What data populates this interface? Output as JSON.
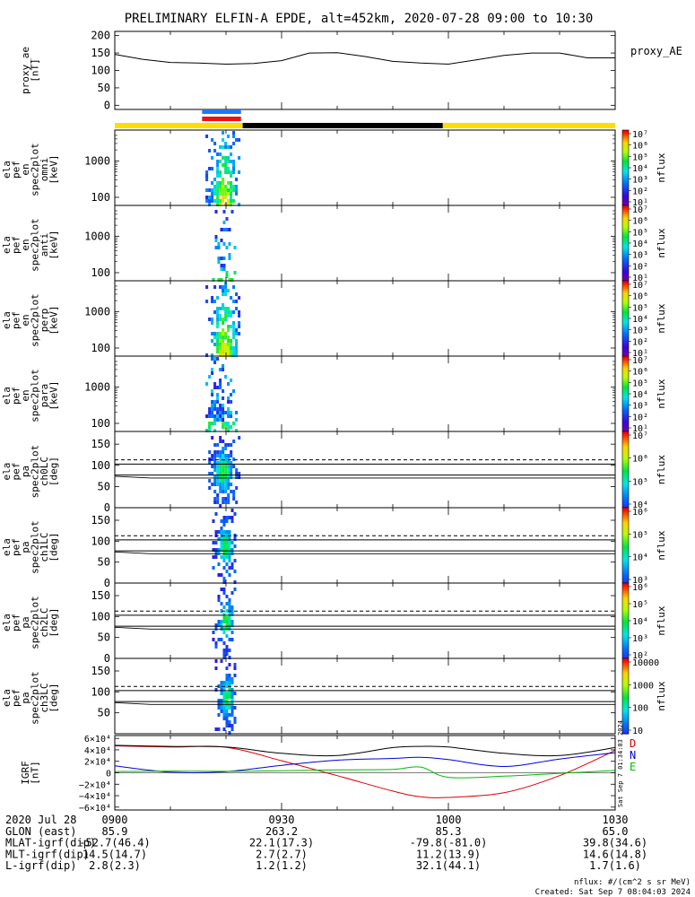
{
  "title": "PRELIMINARY ELFIN-A EPDE, alt=452km, 2020-07-28 09:00 to 10:30",
  "state_bar_colors": {
    "science": "#1e78ff",
    "ifovel": "#ee1111",
    "day": "#ffdd00",
    "night": "#000000"
  },
  "chart_data": [
    {
      "id": "proxy_ae",
      "type": "line",
      "ylabel": [
        "proxy_ae",
        "[nT]"
      ],
      "series_label": "proxy_AE",
      "yticks": [
        0,
        50,
        100,
        150,
        200
      ],
      "ylim": [
        -12,
        212
      ],
      "x_min": [
        0,
        5,
        10,
        15,
        20,
        25,
        30,
        35,
        40,
        45,
        50,
        55,
        60,
        65,
        70,
        75,
        80,
        85,
        90
      ],
      "values": [
        146,
        132,
        123,
        121,
        118,
        120,
        128,
        150,
        151,
        140,
        126,
        121,
        118,
        130,
        143,
        150,
        150,
        136,
        136
      ]
    },
    {
      "id": "state_bar",
      "type": "bar",
      "segments": [
        {
          "x0": 0,
          "x1": 23,
          "state": "day"
        },
        {
          "x0": 23,
          "x1": 59,
          "state": "night"
        },
        {
          "x0": 59,
          "x1": 90,
          "state": "day"
        }
      ],
      "science_zone": [
        15.7,
        22.7
      ]
    },
    {
      "id": "en_omni",
      "type": "heatmap",
      "ylabel": [
        "ela",
        "pef",
        "en",
        "spec2plot",
        "omni",
        "[keV]"
      ],
      "yscale": "log",
      "ylim": [
        60,
        7000
      ],
      "yticks": [
        "100",
        "1000"
      ],
      "cbar_label": "nflux",
      "cbar_ticks": [
        "10¹",
        "10²",
        "10³",
        "10⁴",
        "10⁵",
        "10⁶",
        "10⁷"
      ],
      "x_range": [
        16.3,
        22.5
      ],
      "peak_x": 19.5
    },
    {
      "id": "en_anti",
      "type": "heatmap",
      "ylabel": [
        "ela",
        "pef",
        "en",
        "spec2plot",
        "anti",
        "[keV]"
      ],
      "yscale": "log",
      "ylim": [
        60,
        7000
      ],
      "yticks": [
        "100",
        "1000"
      ],
      "cbar_label": "nflux",
      "cbar_ticks": [
        "10¹",
        "10²",
        "10³",
        "10⁴",
        "10⁵",
        "10⁶",
        "10⁷"
      ],
      "x_range": [
        17.5,
        21.5
      ],
      "peak_x": 19.2
    },
    {
      "id": "en_perp",
      "type": "heatmap",
      "ylabel": [
        "ela",
        "pef",
        "en",
        "spec2plot",
        "perp",
        "[keV]"
      ],
      "yscale": "log",
      "ylim": [
        60,
        7000
      ],
      "yticks": [
        "100",
        "1000"
      ],
      "cbar_label": "nflux",
      "cbar_ticks": [
        "10¹",
        "10²",
        "10³",
        "10⁴",
        "10⁵",
        "10⁶",
        "10⁷"
      ],
      "x_range": [
        16.3,
        22.5
      ],
      "peak_x": 19.5
    },
    {
      "id": "en_para",
      "type": "heatmap",
      "ylabel": [
        "ela",
        "pef",
        "en",
        "spec2plot",
        "para",
        "[keV]"
      ],
      "yscale": "log",
      "ylim": [
        60,
        7000
      ],
      "yticks": [
        "100",
        "1000"
      ],
      "cbar_label": "nflux",
      "cbar_ticks": [
        "10¹",
        "10²",
        "10³",
        "10⁴",
        "10⁵",
        "10⁶",
        "10⁷"
      ],
      "x_range": [
        16.3,
        22.5
      ],
      "peak_x": 18.5
    },
    {
      "id": "pa_ch0LC",
      "type": "heatmap",
      "ylabel": [
        "ela",
        "pef",
        "pa",
        "spec2plot",
        "ch0LC",
        "[deg]"
      ],
      "ylim": [
        0,
        180
      ],
      "yticks": [
        "0",
        "50",
        "100",
        "150"
      ],
      "lc_lines": [
        77,
        103
      ],
      "lc_dash": 113,
      "cbar_label": "nflux",
      "cbar_ticks": [
        "10⁴",
        "10⁵",
        "10⁶",
        "10⁷"
      ],
      "x_range": [
        16.8,
        22.3
      ],
      "peak_x": 19.3
    },
    {
      "id": "pa_ch1LC",
      "type": "heatmap",
      "ylabel": [
        "ela",
        "pef",
        "pa",
        "spec2plot",
        "ch1LC",
        "[deg]"
      ],
      "ylim": [
        0,
        180
      ],
      "yticks": [
        "0",
        "50",
        "100",
        "150"
      ],
      "lc_lines": [
        77,
        103
      ],
      "lc_dash": 113,
      "cbar_label": "nflux",
      "cbar_ticks": [
        "10³",
        "10⁴",
        "10⁵",
        "10⁶"
      ],
      "x_range": [
        17.5,
        21.6
      ],
      "peak_x": 19.6
    },
    {
      "id": "pa_ch2LC",
      "type": "heatmap",
      "ylabel": [
        "ela",
        "pef",
        "pa",
        "spec2plot",
        "ch2LC",
        "[deg]"
      ],
      "ylim": [
        0,
        180
      ],
      "yticks": [
        "0",
        "50",
        "100",
        "150"
      ],
      "lc_lines": [
        77,
        103
      ],
      "lc_dash": 113,
      "cbar_label": "nflux",
      "cbar_ticks": [
        "10²",
        "10³",
        "10⁴",
        "10⁵",
        "10⁶"
      ],
      "x_range": [
        17.5,
        21.6
      ],
      "peak_x": 19.8
    },
    {
      "id": "pa_ch3LC",
      "type": "heatmap",
      "ylabel": [
        "ela",
        "pef",
        "pa",
        "spec2plot",
        "ch3LC",
        "[deg]"
      ],
      "ylim": [
        0,
        180
      ],
      "yticks": [
        "50",
        "100",
        "150"
      ],
      "lc_lines": [
        77,
        103
      ],
      "lc_dash": 113,
      "cbar_label": "nflux",
      "cbar_ticks": [
        "10",
        "100",
        "1000",
        "10000"
      ],
      "x_range": [
        17.5,
        21.6
      ],
      "peak_x": 20
    },
    {
      "id": "igrf",
      "type": "line",
      "ylabel": [
        "IGRF",
        "[nT]"
      ],
      "ylim": [
        -65000,
        65000
      ],
      "yticks": [
        "−6×10⁴",
        "−4×10⁴",
        "−2×10⁴",
        "0",
        "2×10⁴",
        "4×10⁴",
        "6×10⁴"
      ],
      "ytick_values": [
        -60000,
        -40000,
        -20000,
        0,
        20000,
        40000,
        60000
      ],
      "x_min": [
        0,
        10,
        20,
        30,
        40,
        50,
        55,
        60,
        70,
        80,
        90
      ],
      "series": [
        {
          "name": "D",
          "color": "#dd0000",
          "values": [
            47000,
            45000,
            44500,
            21000,
            -5000,
            -32000,
            -42000,
            -43000,
            -35000,
            -5000,
            39000
          ]
        },
        {
          "name": "N",
          "color": "#0000dd",
          "values": [
            12000,
            1000,
            2000,
            13000,
            22000,
            25000,
            27000,
            23000,
            11000,
            24000,
            35000
          ]
        },
        {
          "name": "E",
          "color": "#00bb00",
          "values": [
            2000,
            3000,
            2500,
            3500,
            5000,
            6000,
            10000,
            -8000,
            -6000,
            -1000,
            4000
          ]
        },
        {
          "name": "total",
          "color": "#000000",
          "values": [
            48000,
            46000,
            45000,
            34000,
            30000,
            44000,
            46000,
            45000,
            34000,
            30000,
            44000
          ]
        }
      ],
      "legend": [
        "D",
        "N",
        "E"
      ],
      "side_text": "Sat Sep  7 01:34:03 2024"
    }
  ],
  "x_axis": {
    "tick_min": [
      0,
      30,
      60,
      90
    ],
    "rows": [
      {
        "label": "2020 Jul 28",
        "values": [
          "0900",
          "0930",
          "1000",
          "1030"
        ]
      },
      {
        "label": "GLON (east)",
        "values": [
          "85.9",
          "263.2",
          "85.3",
          "65.0"
        ]
      },
      {
        "label": "MLAT-igrf(dip)",
        "values": [
          "-52.7(46.4)",
          "22.1(17.3)",
          "-79.8(-81.0)",
          "39.8(34.6)"
        ]
      },
      {
        "label": "MLT-igrf(dip)",
        "values": [
          "14.5(14.7)",
          "2.7(2.7)",
          "11.2(13.9)",
          "14.6(14.8)"
        ]
      },
      {
        "label": "L-igrf(dip)",
        "values": [
          "2.8(2.3)",
          "1.2(1.2)",
          "32.1(44.1)",
          "1.7(1.6)"
        ]
      }
    ]
  },
  "footer": {
    "units": "nflux: #/(cm^2 s sr MeV)",
    "created": "Created: Sat Sep  7 08:04:03 2024"
  }
}
